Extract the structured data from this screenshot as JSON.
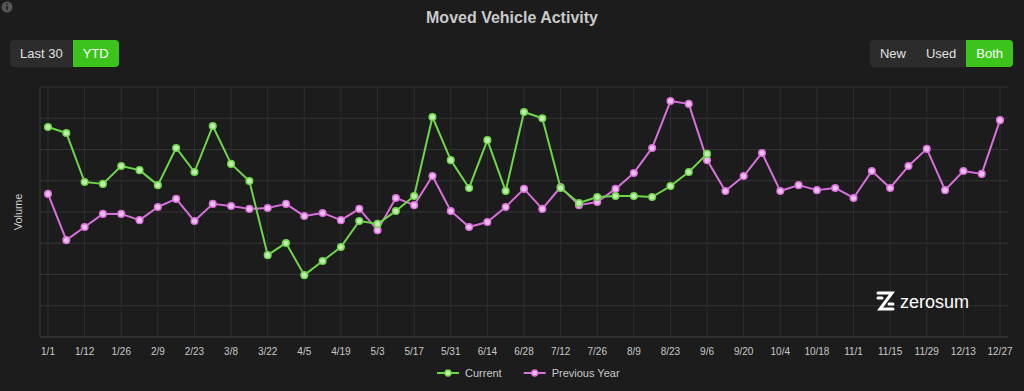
{
  "chart_data": {
    "type": "line",
    "title": "Moved Vehicle Activity",
    "y_label": "Volume",
    "categories": [
      "1/1",
      null,
      "1/12",
      null,
      "1/26",
      null,
      "2/9",
      null,
      "2/23",
      null,
      "3/8",
      null,
      "3/22",
      null,
      "4/5",
      null,
      "4/19",
      null,
      "5/3",
      null,
      "5/17",
      null,
      "5/31",
      null,
      "6/14",
      null,
      "6/28",
      null,
      "7/12",
      null,
      "7/26",
      null,
      "8/9",
      null,
      "8/23",
      null,
      "9/6",
      null,
      "9/20",
      null,
      "10/4",
      null,
      "10/18",
      null,
      "11/1",
      null,
      "11/15",
      null,
      "11/29",
      null,
      "12/13",
      null,
      "12/27"
    ],
    "series": [
      {
        "name": "Current",
        "color": "#6fd64a",
        "values": [
          67.2,
          65.3,
          49.6,
          49,
          54.7,
          53.4,
          48.6,
          60.5,
          52.8,
          67.5,
          55.4,
          49.9,
          26.2,
          30.1,
          19.8,
          24.3,
          28.8,
          37.1,
          36.2,
          40.3,
          45.1,
          70.4,
          56.6,
          47.7,
          63,
          46.7,
          72,
          70,
          47.7,
          42.9,
          44.8,
          45.1,
          45.1,
          44.8,
          48.3,
          52.8,
          58.6,
          null,
          null,
          null,
          null,
          null,
          null,
          null,
          null,
          null,
          null,
          null,
          null,
          null,
          null,
          null,
          null
        ]
      },
      {
        "name": "Previous Year",
        "color": "#d96fdc",
        "values": [
          45.8,
          31,
          35.2,
          39.4,
          39.4,
          37.4,
          41.6,
          44.2,
          37.1,
          42.6,
          41.9,
          41,
          41.3,
          42.6,
          38.7,
          39.7,
          37.4,
          41,
          34.2,
          44.5,
          42.2,
          51.5,
          40.3,
          35.2,
          36.8,
          41.6,
          47.4,
          41,
          48,
          42.2,
          43.2,
          47.4,
          52.5,
          60.5,
          75.5,
          74.6,
          56.6,
          46.7,
          51.5,
          58.9,
          46.7,
          48.6,
          47,
          47.7,
          44.5,
          53.1,
          47.7,
          54.7,
          60.2,
          47,
          53.1,
          52.2,
          69.4
        ]
      }
    ],
    "ylim": [
      0,
      80
    ],
    "yticks": [
      0,
      10,
      20,
      30,
      40,
      50,
      60,
      70,
      80
    ],
    "grid": true,
    "legend": "bottom",
    "tick_labels": "x",
    "marker": "circle"
  },
  "controls": {
    "period": [
      {
        "label": "Last 30",
        "active": false
      },
      {
        "label": "YTD",
        "active": true
      }
    ],
    "condition": [
      {
        "label": "New",
        "active": false
      },
      {
        "label": "Used",
        "active": false
      },
      {
        "label": "Both",
        "active": true
      }
    ]
  },
  "brand": "zerosum"
}
